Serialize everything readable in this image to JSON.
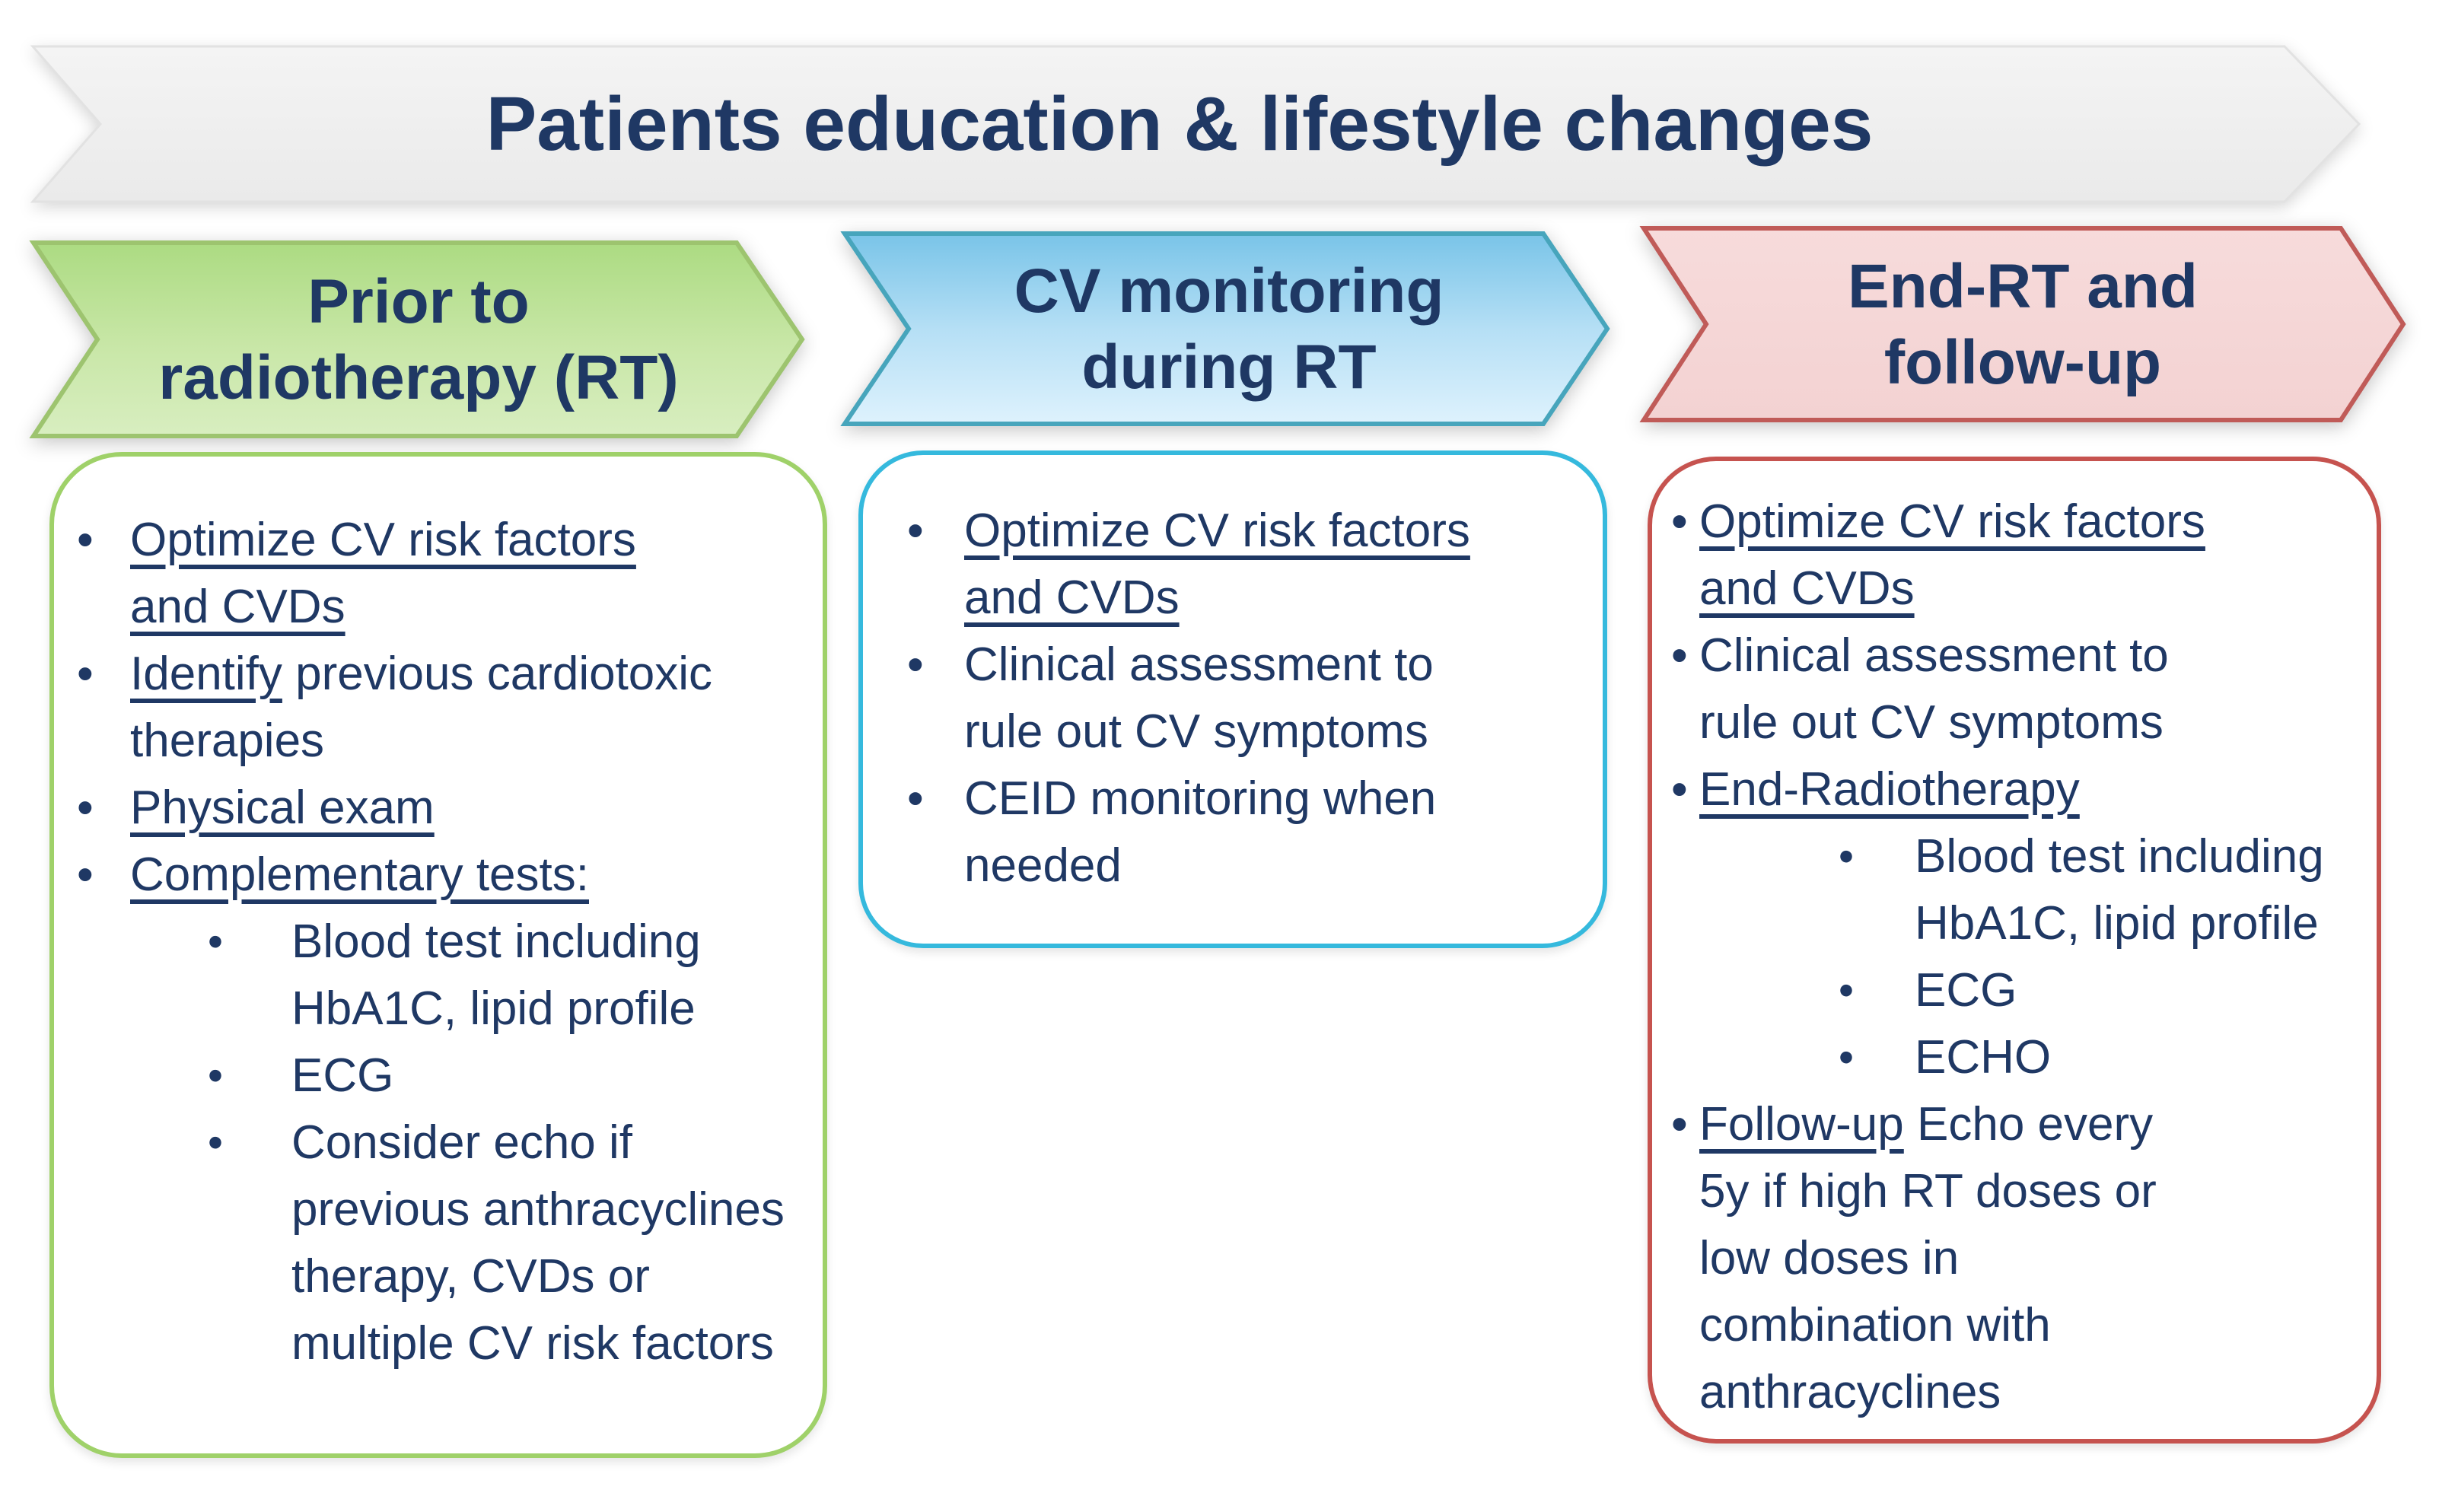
{
  "banner": {
    "title": "Patients education & lifestyle changes"
  },
  "colors": {
    "text_navy": "#1f3864",
    "banner_fill_top": "#f4f4f4",
    "banner_fill_bottom": "#eaeaea",
    "banner_border": "#e2e2e2",
    "green_arrow_border": "#9dc46f",
    "green_arrow_fill_top": "#acdb82",
    "green_arrow_fill_bottom": "#d8eec0",
    "green_box_border": "#9fd169",
    "blue_arrow_border": "#47a5bc",
    "blue_arrow_fill_top": "#79c4e8",
    "blue_arrow_fill_bottom": "#def2fd",
    "blue_box_border": "#35b9dd",
    "pink_arrow_border": "#c05b58",
    "pink_arrow_fill": "#f6d9d9",
    "red_box_border": "#c6534f"
  },
  "columns": [
    {
      "id": "prior-to-rt",
      "header": {
        "lines": [
          "Prior to",
          "radiotherapy (RT)"
        ]
      },
      "items": [
        {
          "level": 1,
          "lines": [
            [
              {
                "t": "Optimize CV risk factors",
                "u": true
              }
            ],
            [
              {
                "t": "and CVDs",
                "u": true
              }
            ]
          ]
        },
        {
          "level": 1,
          "lines": [
            [
              {
                "t": "Identify",
                "u": true
              },
              {
                "t": " previous cardiotoxic",
                "u": false
              }
            ],
            [
              {
                "t": "therapies",
                "u": false
              }
            ]
          ]
        },
        {
          "level": 1,
          "lines": [
            [
              {
                "t": "Physical exam",
                "u": true
              }
            ]
          ]
        },
        {
          "level": 1,
          "lines": [
            [
              {
                "t": "Complementary tests:",
                "u": true
              }
            ]
          ]
        },
        {
          "level": 2,
          "lines": [
            [
              {
                "t": "Blood test including",
                "u": false
              }
            ],
            [
              {
                "t": "HbA1C, lipid profile",
                "u": false
              }
            ]
          ]
        },
        {
          "level": 2,
          "lines": [
            [
              {
                "t": "ECG",
                "u": false
              }
            ]
          ]
        },
        {
          "level": 2,
          "lines": [
            [
              {
                "t": "Consider echo if",
                "u": false
              }
            ],
            [
              {
                "t": "previous anthracyclines",
                "u": false
              }
            ],
            [
              {
                "t": "therapy, CVDs or",
                "u": false
              }
            ],
            [
              {
                "t": "multiple CV risk factors",
                "u": false
              }
            ]
          ]
        }
      ]
    },
    {
      "id": "cv-monitoring-during-rt",
      "header": {
        "lines": [
          "CV monitoring",
          "during RT"
        ]
      },
      "items": [
        {
          "level": 1,
          "lines": [
            [
              {
                "t": "Optimize CV risk factors",
                "u": true
              }
            ],
            [
              {
                "t": "and CVDs",
                "u": true
              }
            ]
          ]
        },
        {
          "level": 1,
          "lines": [
            [
              {
                "t": "Clinical assessment to",
                "u": false
              }
            ],
            [
              {
                "t": "rule out CV symptoms",
                "u": false
              }
            ]
          ]
        },
        {
          "level": 1,
          "lines": [
            [
              {
                "t": "CEID monitoring when",
                "u": false
              }
            ],
            [
              {
                "t": "needed",
                "u": false
              }
            ]
          ]
        }
      ]
    },
    {
      "id": "end-rt-and-follow-up",
      "header": {
        "lines": [
          "End-RT and",
          "follow-up"
        ]
      },
      "items": [
        {
          "level": 1,
          "lines": [
            [
              {
                "t": "Optimize CV risk factors",
                "u": true
              }
            ],
            [
              {
                "t": "and CVDs",
                "u": true
              }
            ]
          ]
        },
        {
          "level": 1,
          "lines": [
            [
              {
                "t": "Clinical assessment to",
                "u": false
              }
            ],
            [
              {
                "t": "rule out CV symptoms",
                "u": false
              }
            ]
          ]
        },
        {
          "level": 1,
          "lines": [
            [
              {
                "t": "End-Radiotherapy",
                "u": true
              }
            ]
          ]
        },
        {
          "level": 2,
          "lines": [
            [
              {
                "t": "Blood test including",
                "u": false
              }
            ],
            [
              {
                "t": "HbA1C, lipid profile",
                "u": false
              }
            ]
          ]
        },
        {
          "level": 2,
          "lines": [
            [
              {
                "t": "ECG",
                "u": false
              }
            ]
          ]
        },
        {
          "level": 2,
          "lines": [
            [
              {
                "t": "ECHO",
                "u": false
              }
            ]
          ]
        },
        {
          "level": 1,
          "lines": [
            [
              {
                "t": "Follow-up",
                "u": true
              },
              {
                "t": " Echo every",
                "u": false
              }
            ],
            [
              {
                "t": "5y if high RT doses or",
                "u": false
              }
            ],
            [
              {
                "t": "low doses in",
                "u": false
              }
            ],
            [
              {
                "t": "combination with",
                "u": false
              }
            ],
            [
              {
                "t": "anthracyclines",
                "u": false
              }
            ]
          ]
        }
      ]
    }
  ]
}
